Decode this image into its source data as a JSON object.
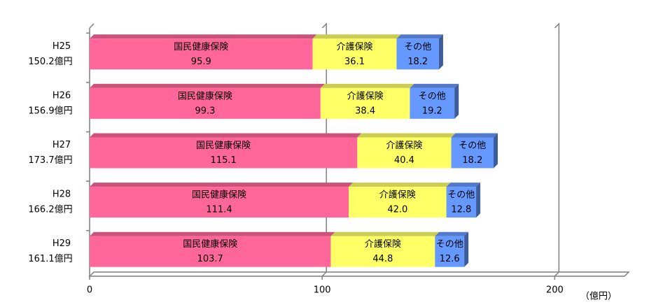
{
  "chart_data": {
    "type": "stacked-bar-horizontal",
    "categories": [
      "H25",
      "H26",
      "H27",
      "H28",
      "H29"
    ],
    "totals": [
      {
        "value": 150.2,
        "label": "150.2億円"
      },
      {
        "value": 156.9,
        "label": "156.9億円"
      },
      {
        "value": 173.7,
        "label": "173.7億円"
      },
      {
        "value": 166.2,
        "label": "166.2億円"
      },
      {
        "value": 161.1,
        "label": "161.1億円"
      }
    ],
    "series": [
      {
        "name": "国民健康保険",
        "color": "#ff6699",
        "values": [
          95.9,
          99.3,
          115.1,
          111.4,
          103.7
        ],
        "value_labels": [
          "95.9",
          "99.3",
          "115.1",
          "111.4",
          "103.7"
        ]
      },
      {
        "name": "介護保険",
        "color": "#ffff66",
        "values": [
          36.1,
          38.4,
          40.4,
          42.0,
          44.8
        ],
        "value_labels": [
          "36.1",
          "38.4",
          "40.4",
          "42.0",
          "44.8"
        ]
      },
      {
        "name": "その他",
        "color": "#6699ff",
        "values": [
          18.2,
          19.2,
          18.2,
          12.8,
          12.6
        ],
        "value_labels": [
          "18.2",
          "19.2",
          "18.2",
          "12.8",
          "12.6"
        ]
      }
    ],
    "xlim": [
      0,
      230
    ],
    "xticks": [
      0,
      100,
      200
    ],
    "x_unit": "（億円）",
    "grid": true
  }
}
